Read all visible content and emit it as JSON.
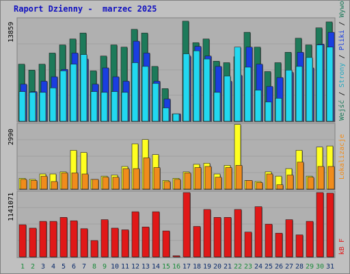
{
  "title": "Raport Dzienny -  marzec 2025",
  "chart_data": [
    {
      "type": "bar",
      "panel": "top",
      "ymax_label": "13859",
      "ylim": [
        0,
        13859
      ],
      "days": [
        "1",
        "2",
        "3",
        "4",
        "5",
        "6",
        "7",
        "8",
        "9",
        "10",
        "11",
        "12",
        "13",
        "14",
        "15",
        "16",
        "17",
        "18",
        "19",
        "20",
        "21",
        "22",
        "23",
        "24",
        "25",
        "26",
        "27",
        "28",
        "29",
        "30",
        "31"
      ],
      "weekend_days": [
        "1",
        "2",
        "8",
        "9",
        "15",
        "16",
        "22",
        "23",
        "29",
        "30"
      ],
      "legend": [
        "Wejść",
        "Strony",
        "Pliki",
        "Wywołania"
      ],
      "series": [
        {
          "name": "Wywołania",
          "color": "#1d7a5a",
          "values": [
            7700,
            6900,
            7700,
            9200,
            10300,
            11100,
            11900,
            6800,
            8800,
            10300,
            10000,
            12400,
            11900,
            7400,
            4400,
            1000,
            13500,
            10600,
            11100,
            8100,
            7900,
            8700,
            12000,
            10000,
            6700,
            7900,
            9300,
            11200,
            10300,
            12600,
            13400
          ]
        },
        {
          "name": "Pliki",
          "color": "#1a3ee0",
          "values": [
            5000,
            4000,
            5400,
            6000,
            7000,
            9200,
            8400,
            5000,
            7200,
            6000,
            5400,
            10800,
            9200,
            5400,
            3000,
            1000,
            8800,
            10100,
            8800,
            7400,
            5400,
            6200,
            10000,
            7700,
            4700,
            5900,
            6600,
            9300,
            7200,
            10400,
            12000
          ]
        },
        {
          "name": "Strony",
          "color": "#22d8f0",
          "values": [
            4000,
            3900,
            3900,
            4500,
            6800,
            7700,
            9000,
            4000,
            3900,
            4000,
            3900,
            7900,
            7400,
            5100,
            1800,
            1000,
            9100,
            9500,
            8400,
            3900,
            6100,
            10000,
            7300,
            4200,
            2600,
            3100,
            6900,
            7400,
            8600,
            10300,
            10000
          ]
        }
      ]
    },
    {
      "type": "bar",
      "panel": "middle",
      "ymax_label": "2990",
      "ylim": [
        0,
        2990
      ],
      "legend": [
        "Lokalizacje"
      ],
      "series": [
        {
          "name": "Odwiedziny",
          "color": "#ffff20",
          "values": [
            500,
            450,
            700,
            700,
            800,
            1800,
            1700,
            450,
            600,
            650,
            1050,
            2100,
            2300,
            1600,
            400,
            500,
            800,
            1150,
            1200,
            700,
            1100,
            3000,
            400,
            350,
            800,
            600,
            950,
            1800,
            600,
            1950,
            2000
          ]
        },
        {
          "name": "Lokalizacje",
          "color": "#f08c1c",
          "values": [
            450,
            400,
            600,
            350,
            750,
            750,
            700,
            450,
            550,
            550,
            950,
            950,
            1450,
            1000,
            350,
            450,
            750,
            1000,
            1050,
            550,
            1000,
            1100,
            400,
            300,
            700,
            200,
            650,
            1250,
            550,
            1050,
            1050
          ]
        }
      ]
    },
    {
      "type": "bar",
      "panel": "bottom",
      "ymax_label": "1141071",
      "ylim": [
        0,
        1141071
      ],
      "legend": [
        "kB F"
      ],
      "series": [
        {
          "name": "kB F",
          "color": "#e01818",
          "values": [
            570000,
            510000,
            630000,
            630000,
            700000,
            640000,
            500000,
            290000,
            660000,
            510000,
            480000,
            800000,
            530000,
            800000,
            460000,
            20000,
            1140000,
            540000,
            840000,
            700000,
            700000,
            840000,
            440000,
            890000,
            580000,
            420000,
            660000,
            390000,
            630000,
            1140000,
            1130000
          ]
        }
      ]
    }
  ]
}
